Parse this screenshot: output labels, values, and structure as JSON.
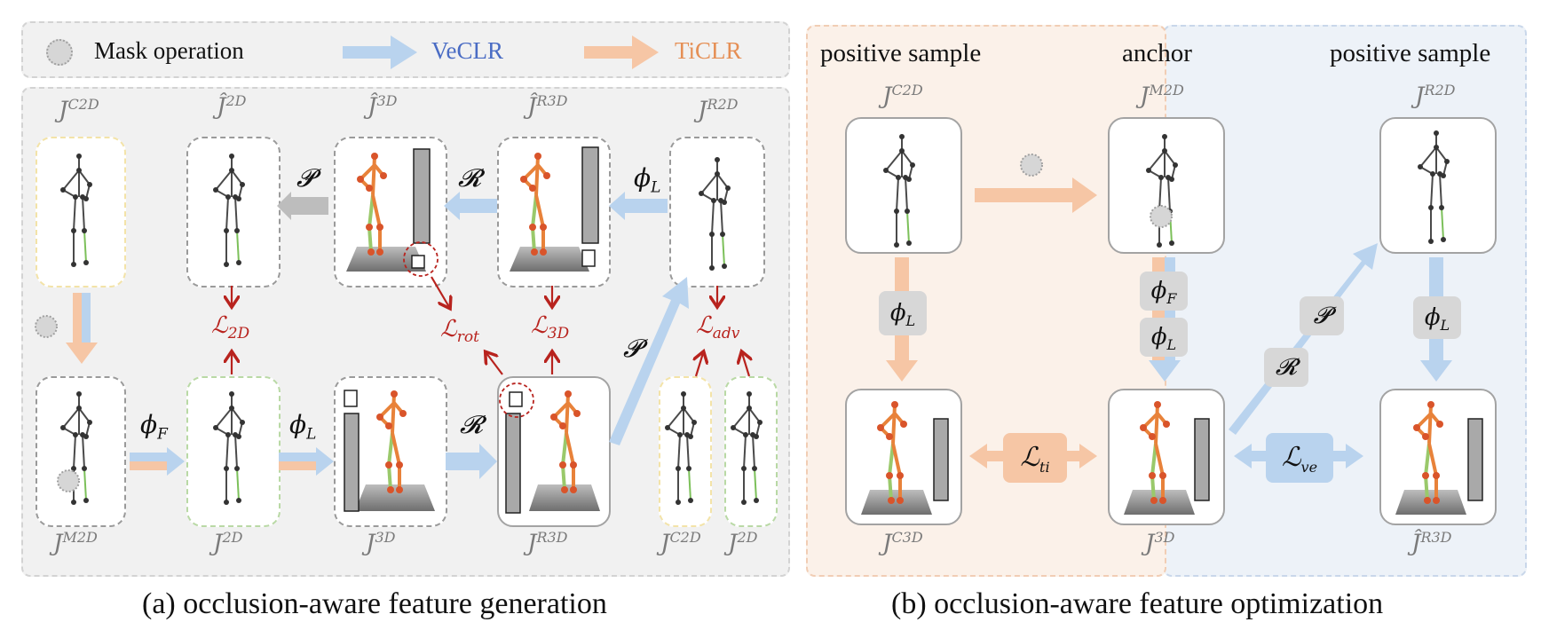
{
  "legend": {
    "mask_label": "Mask operation",
    "veclr_label": "VeCLR",
    "ticlr_label": "TiCLR",
    "veclr_color": "#4a6cc4",
    "ticlr_color": "#e58f55",
    "blue_arrow_color": "#b9d3ee",
    "orange_arrow_color": "#f6c6a5",
    "loss_color": "#b8231e"
  },
  "panel_a": {
    "caption": "(a) occlusion-aware feature generation",
    "top_labels": [
      {
        "base": "J",
        "sup": "C2D"
      },
      {
        "base": "Ĵ",
        "sup": "2D"
      },
      {
        "base": "Ĵ",
        "sup": "3D"
      },
      {
        "base": "Ĵ",
        "sup": "R3D"
      },
      {
        "base": "J",
        "sup": "R2D"
      }
    ],
    "bottom_labels": [
      {
        "base": "J",
        "sup": "M2D"
      },
      {
        "base": "J",
        "sup": "2D"
      },
      {
        "base": "J",
        "sup": "3D"
      },
      {
        "base": "J",
        "sup": "R3D"
      },
      {
        "base": "J",
        "sup": "C2D"
      },
      {
        "base": "J",
        "sup": "2D"
      }
    ],
    "ops": {
      "proj": "𝓟",
      "rot": "𝓡",
      "phiF": "ϕ",
      "phiF_sub": "F",
      "phiL": "ϕ",
      "phiL_sub": "L"
    },
    "losses": {
      "l2d": {
        "base": "ℒ",
        "sub": "2D"
      },
      "lrot": {
        "base": "ℒ",
        "sub": "rot"
      },
      "l3d": {
        "base": "ℒ",
        "sub": "3D"
      },
      "ladv": {
        "base": "ℒ",
        "sub": "adv"
      }
    }
  },
  "panel_b": {
    "caption": "(b) occlusion-aware feature optimization",
    "heading_left": "positive sample",
    "heading_center": "anchor",
    "heading_right": "positive sample",
    "top_labels": [
      {
        "base": "J",
        "sup": "C2D"
      },
      {
        "base": "J",
        "sup": "M2D"
      },
      {
        "base": "J",
        "sup": "R2D"
      }
    ],
    "bottom_labels": [
      {
        "base": "J",
        "sup": "C3D"
      },
      {
        "base": "J",
        "sup": "3D"
      },
      {
        "base": "Ĵ",
        "sup": "R3D"
      }
    ],
    "losses": {
      "lti": {
        "base": "ℒ",
        "sub": "ti"
      },
      "lve": {
        "base": "ℒ",
        "sub": "ve"
      }
    }
  }
}
